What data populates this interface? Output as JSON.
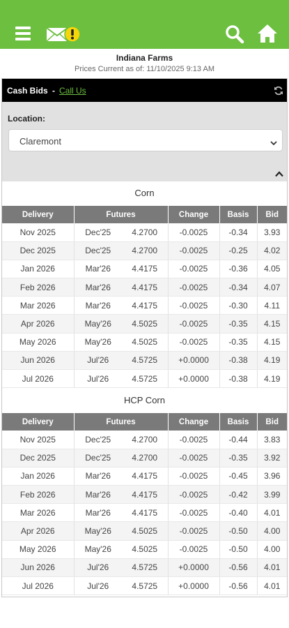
{
  "header": {
    "menu_icon": "menu-icon",
    "mail_icon": "mail-alert-icon",
    "search_icon": "search-icon",
    "home_icon": "home-icon",
    "bar_color": "#6cbf3f"
  },
  "org_name": "Indiana Farms",
  "prices_as_of": "Prices Current as of: 11/10/2025 9:13 AM",
  "cash_bids": {
    "title": "Cash Bids",
    "separator": "-",
    "call_us": "Call Us",
    "refresh_icon": "refresh-icon"
  },
  "location": {
    "label": "Location:",
    "selected": "Claremont"
  },
  "columns": [
    "Delivery",
    "Futures",
    "Change",
    "Basis",
    "Bid"
  ],
  "tables": [
    {
      "title": "Corn",
      "rows": [
        {
          "delivery": "Nov 2025",
          "fmonth": "Dec'25",
          "fprice": "4.2700",
          "change": "-0.0025",
          "basis": "-0.34",
          "bid": "3.93"
        },
        {
          "delivery": "Dec 2025",
          "fmonth": "Dec'25",
          "fprice": "4.2700",
          "change": "-0.0025",
          "basis": "-0.25",
          "bid": "4.02"
        },
        {
          "delivery": "Jan 2026",
          "fmonth": "Mar'26",
          "fprice": "4.4175",
          "change": "-0.0025",
          "basis": "-0.36",
          "bid": "4.05"
        },
        {
          "delivery": "Feb 2026",
          "fmonth": "Mar'26",
          "fprice": "4.4175",
          "change": "-0.0025",
          "basis": "-0.34",
          "bid": "4.07"
        },
        {
          "delivery": "Mar 2026",
          "fmonth": "Mar'26",
          "fprice": "4.4175",
          "change": "-0.0025",
          "basis": "-0.30",
          "bid": "4.11"
        },
        {
          "delivery": "Apr 2026",
          "fmonth": "May'26",
          "fprice": "4.5025",
          "change": "-0.0025",
          "basis": "-0.35",
          "bid": "4.15"
        },
        {
          "delivery": "May 2026",
          "fmonth": "May'26",
          "fprice": "4.5025",
          "change": "-0.0025",
          "basis": "-0.35",
          "bid": "4.15"
        },
        {
          "delivery": "Jun 2026",
          "fmonth": "Jul'26",
          "fprice": "4.5725",
          "change": "+0.0000",
          "basis": "-0.38",
          "bid": "4.19"
        },
        {
          "delivery": "Jul 2026",
          "fmonth": "Jul'26",
          "fprice": "4.5725",
          "change": "+0.0000",
          "basis": "-0.38",
          "bid": "4.19"
        }
      ]
    },
    {
      "title": "HCP Corn",
      "rows": [
        {
          "delivery": "Nov 2025",
          "fmonth": "Dec'25",
          "fprice": "4.2700",
          "change": "-0.0025",
          "basis": "-0.44",
          "bid": "3.83"
        },
        {
          "delivery": "Dec 2025",
          "fmonth": "Dec'25",
          "fprice": "4.2700",
          "change": "-0.0025",
          "basis": "-0.35",
          "bid": "3.92"
        },
        {
          "delivery": "Jan 2026",
          "fmonth": "Mar'26",
          "fprice": "4.4175",
          "change": "-0.0025",
          "basis": "-0.45",
          "bid": "3.96"
        },
        {
          "delivery": "Feb 2026",
          "fmonth": "Mar'26",
          "fprice": "4.4175",
          "change": "-0.0025",
          "basis": "-0.42",
          "bid": "3.99"
        },
        {
          "delivery": "Mar 2026",
          "fmonth": "Mar'26",
          "fprice": "4.4175",
          "change": "-0.0025",
          "basis": "-0.40",
          "bid": "4.01"
        },
        {
          "delivery": "Apr 2026",
          "fmonth": "May'26",
          "fprice": "4.5025",
          "change": "-0.0025",
          "basis": "-0.50",
          "bid": "4.00"
        },
        {
          "delivery": "May 2026",
          "fmonth": "May'26",
          "fprice": "4.5025",
          "change": "-0.0025",
          "basis": "-0.50",
          "bid": "4.00"
        },
        {
          "delivery": "Jun 2026",
          "fmonth": "Jul'26",
          "fprice": "4.5725",
          "change": "+0.0000",
          "basis": "-0.56",
          "bid": "4.01"
        },
        {
          "delivery": "Jul 2026",
          "fmonth": "Jul'26",
          "fprice": "4.5725",
          "change": "+0.0000",
          "basis": "-0.56",
          "bid": "4.01"
        }
      ]
    }
  ]
}
